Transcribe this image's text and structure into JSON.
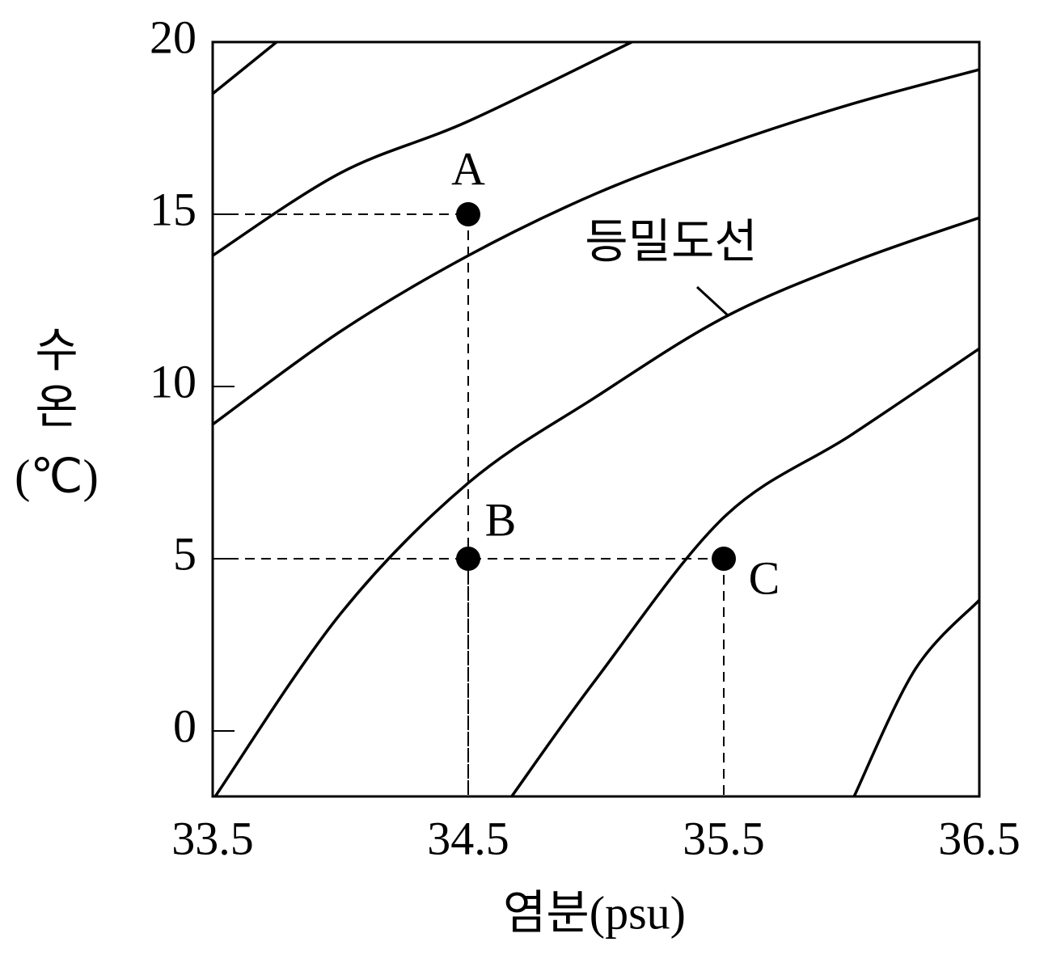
{
  "chart_data": {
    "type": "scatter",
    "xlabel": "염분(psu)",
    "ylabel": "수온",
    "yunit": "(℃)",
    "xlim": [
      33.5,
      36.5
    ],
    "ylim": [
      -1.9,
      20
    ],
    "xticks": [
      33.5,
      34.5,
      35.5,
      36.5
    ],
    "yticks": [
      0,
      5,
      10,
      15,
      20
    ],
    "color": "#000000",
    "curves": [
      {
        "x": [
          33.5,
          33.75
        ],
        "values": [
          18.5,
          20
        ]
      },
      {
        "x": [
          33.5,
          34.0,
          34.5,
          35.14
        ],
        "values": [
          13.8,
          16.2,
          17.7,
          20
        ]
      },
      {
        "x": [
          33.5,
          34.0,
          34.5,
          35.0,
          35.5,
          36.0,
          36.5
        ],
        "values": [
          8.9,
          11.6,
          13.8,
          15.6,
          17.0,
          18.2,
          19.2
        ]
      },
      {
        "x": [
          33.51,
          34.0,
          34.5,
          35.0,
          35.5,
          36.0,
          36.5
        ],
        "values": [
          -1.9,
          3.4,
          7.2,
          9.7,
          12.0,
          13.6,
          14.9
        ]
      },
      {
        "x": [
          34.67,
          35.0,
          35.5,
          36.0,
          36.5
        ],
        "values": [
          -1.9,
          1.5,
          6.2,
          8.6,
          11.1
        ]
      },
      {
        "x": [
          36.01,
          36.25,
          36.5
        ],
        "values": [
          -1.9,
          1.8,
          3.8
        ]
      }
    ],
    "annotation": "등밀도선",
    "points": [
      {
        "label": "A",
        "x": 34.5,
        "y": 15
      },
      {
        "label": "B",
        "x": 34.5,
        "y": 5
      },
      {
        "label": "C",
        "x": 35.5,
        "y": 5
      }
    ]
  }
}
